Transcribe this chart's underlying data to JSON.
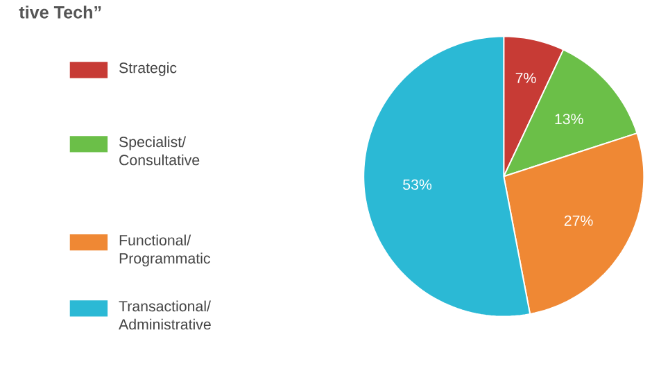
{
  "chart_data": {
    "type": "pie",
    "title": "tive Tech”",
    "categories": [
      "Strategic",
      "Specialist/ Consultative",
      "Functional/ Programmatic",
      "Transactional/ Administrative"
    ],
    "values": [
      7,
      13,
      27,
      53
    ],
    "value_labels": [
      "7%",
      "13%",
      "27%",
      "53%"
    ],
    "colors": [
      "#c73b35",
      "#6bbf48",
      "#ef8834",
      "#2bb9d5"
    ],
    "legend": "left"
  }
}
